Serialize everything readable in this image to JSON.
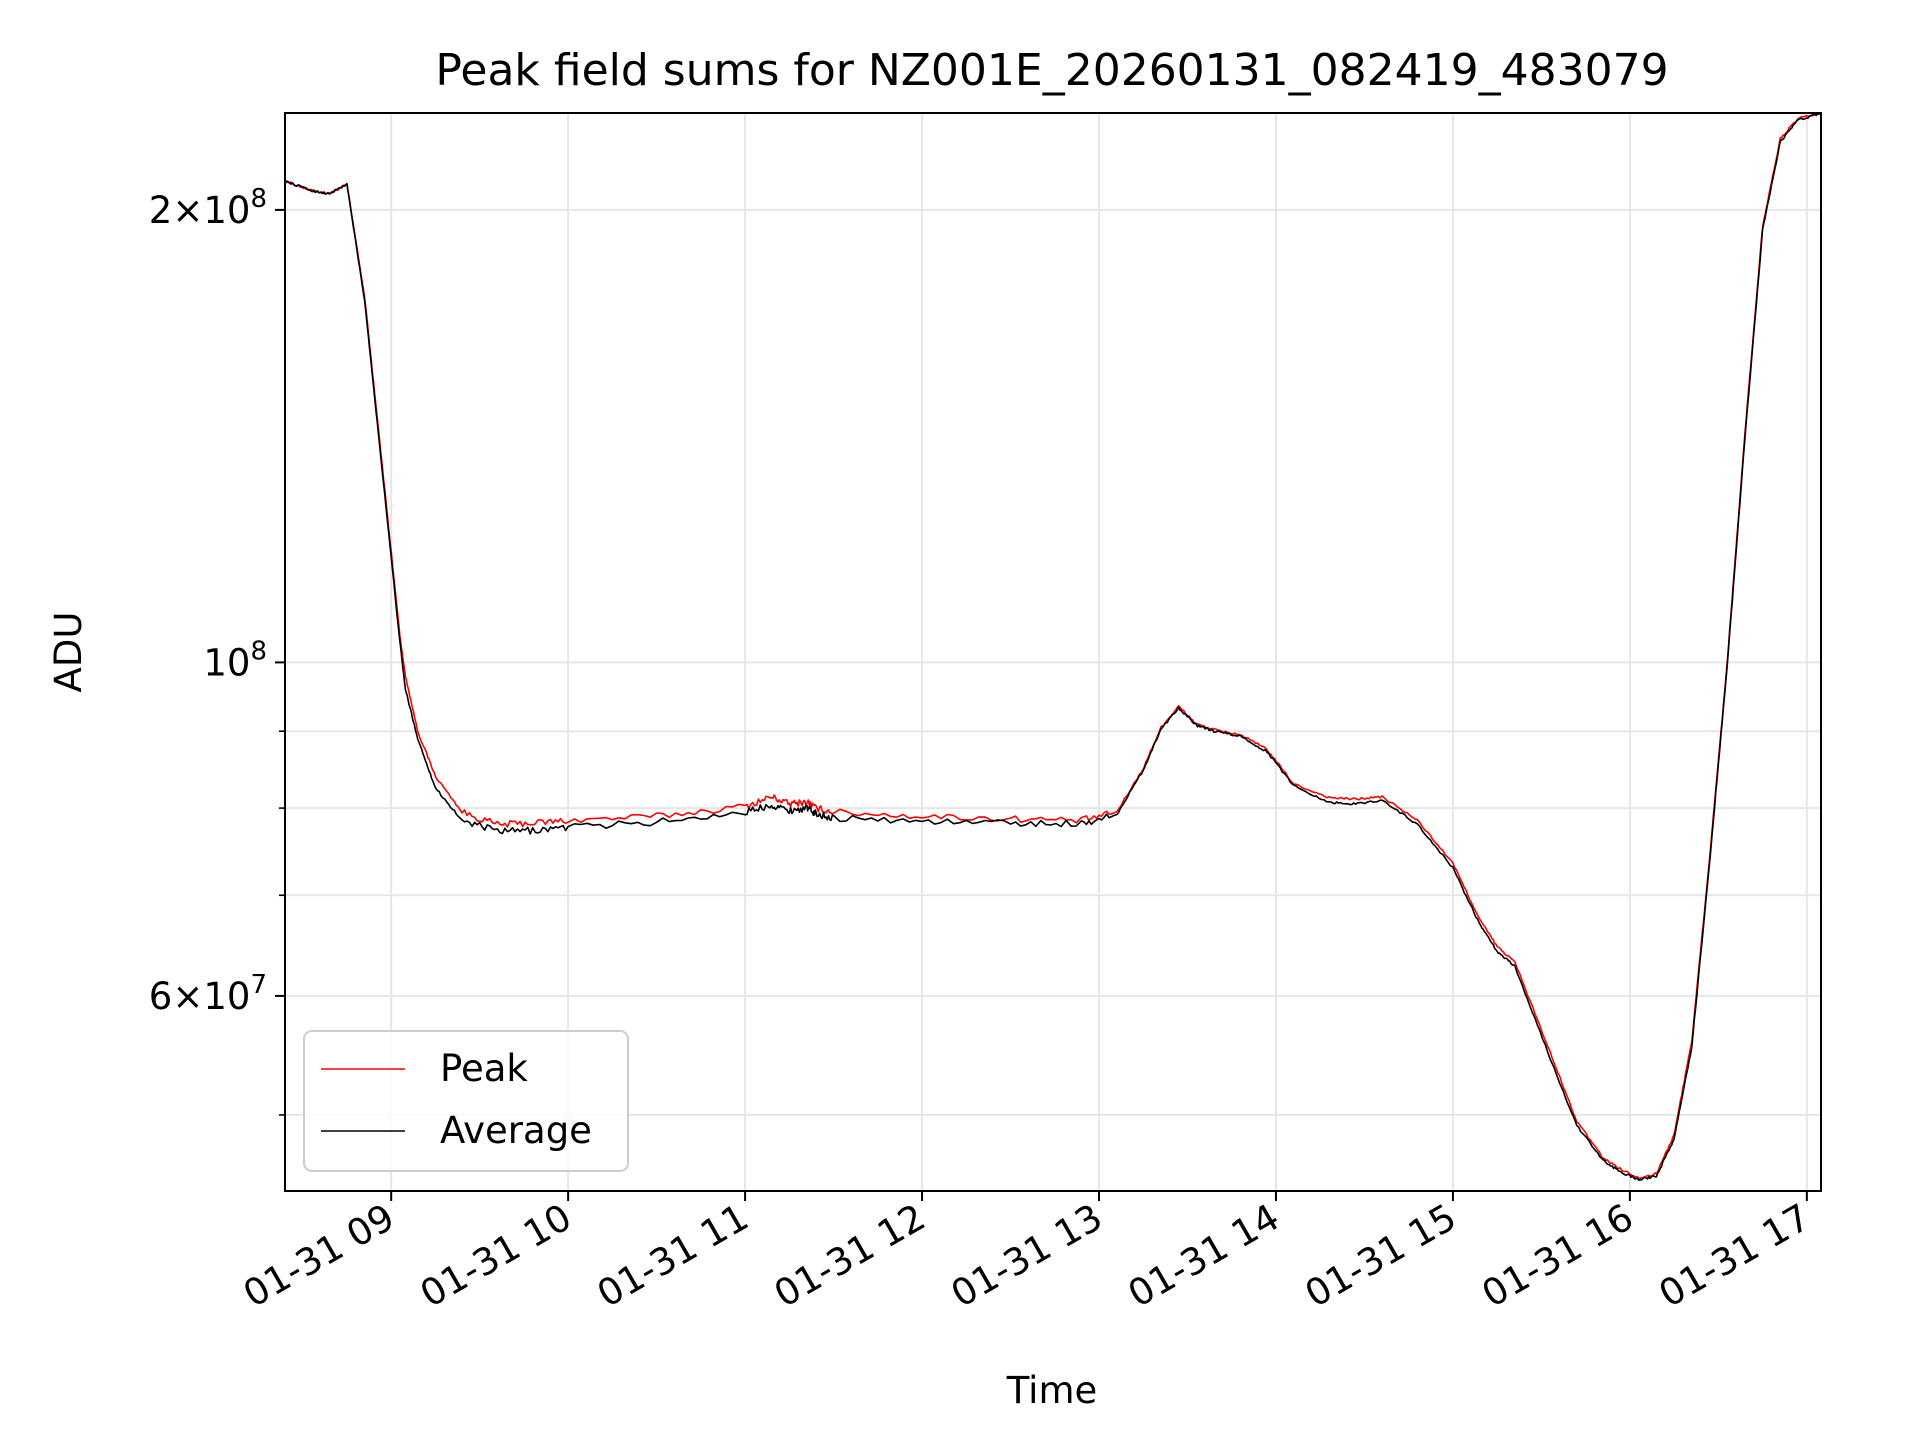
{
  "chart_data": {
    "type": "line",
    "title": "Peak field sums for NZ001E_20260131_082419_483079",
    "xlabel": "Time",
    "ylabel": "ADU",
    "yscale": "log",
    "grid": true,
    "legend_position": "lower-left",
    "x_unit": "hours since 2026-01-31 00:00",
    "xlim": [
      8.4,
      17.08
    ],
    "ylim": [
      44500000,
      232000000
    ],
    "x_ticks": [
      {
        "value": 9,
        "label": "01-31 09"
      },
      {
        "value": 10,
        "label": "01-31 10"
      },
      {
        "value": 11,
        "label": "01-31 11"
      },
      {
        "value": 12,
        "label": "01-31 12"
      },
      {
        "value": 13,
        "label": "01-31 13"
      },
      {
        "value": 14,
        "label": "01-31 14"
      },
      {
        "value": 15,
        "label": "01-31 15"
      },
      {
        "value": 16,
        "label": "01-31 16"
      },
      {
        "value": 17,
        "label": "01-31 17"
      }
    ],
    "y_major_ticks": [
      {
        "value": 60000000,
        "mantissa": "6",
        "times": "×",
        "base": "10",
        "exponent": "7"
      },
      {
        "value": 100000000,
        "mantissa": "",
        "times": "",
        "base": "10",
        "exponent": "8"
      },
      {
        "value": 200000000,
        "mantissa": "2",
        "times": "×",
        "base": "10",
        "exponent": "8"
      }
    ],
    "y_minor_ticks": [
      50000000,
      70000000,
      80000000,
      90000000
    ],
    "series": [
      {
        "name": "Peak",
        "color": "#ff0000",
        "x": [
          8.4,
          8.55,
          8.65,
          8.75,
          8.85,
          8.95,
          9.05,
          9.08,
          9.15,
          9.25,
          9.4,
          9.6,
          9.8,
          10.0,
          10.5,
          11.0,
          11.15,
          11.25,
          11.35,
          11.4,
          11.5,
          12.0,
          12.5,
          12.9,
          13.1,
          13.25,
          13.35,
          13.45,
          13.55,
          13.65,
          13.8,
          13.95,
          14.1,
          14.3,
          14.45,
          14.6,
          14.8,
          15.0,
          15.15,
          15.25,
          15.35,
          15.55,
          15.7,
          15.85,
          15.95,
          16.05,
          16.15,
          16.25,
          16.35,
          16.45,
          16.55,
          16.65,
          16.75,
          16.85,
          16.95,
          17.08
        ],
        "y": [
          209000000,
          206000000,
          205000000,
          208000000,
          175000000,
          135000000,
          104000000,
          98000000,
          90000000,
          84000000,
          79500000,
          78000000,
          78200000,
          78500000,
          79000000,
          80200000,
          81400000,
          80500000,
          80800000,
          80000000,
          79500000,
          79000000,
          78700000,
          78500000,
          79500000,
          85000000,
          90500000,
          93500000,
          91000000,
          90200000,
          89500000,
          87500000,
          83000000,
          81300000,
          81100000,
          81400000,
          78500000,
          73500000,
          67500000,
          64700000,
          63200000,
          55000000,
          49500000,
          46800000,
          46000000,
          45400000,
          45700000,
          48500000,
          56000000,
          74000000,
          100000000,
          142000000,
          195000000,
          223000000,
          230000000,
          232000000
        ]
      },
      {
        "name": "Average",
        "color": "#000000",
        "x": [
          8.4,
          8.55,
          8.65,
          8.75,
          8.85,
          8.95,
          9.05,
          9.08,
          9.15,
          9.25,
          9.4,
          9.6,
          9.8,
          10.0,
          10.5,
          11.0,
          11.15,
          11.25,
          11.35,
          11.4,
          11.5,
          12.0,
          12.5,
          12.9,
          13.1,
          13.25,
          13.35,
          13.45,
          13.55,
          13.65,
          13.8,
          13.95,
          14.1,
          14.3,
          14.45,
          14.6,
          14.8,
          15.0,
          15.15,
          15.25,
          15.35,
          15.55,
          15.7,
          15.85,
          15.95,
          16.05,
          16.15,
          16.25,
          16.35,
          16.45,
          16.55,
          16.65,
          16.75,
          16.85,
          16.95,
          17.08
        ],
        "y": [
          209000000,
          206000000,
          205000000,
          208000000,
          174000000,
          134000000,
          103000000,
          96000000,
          89000000,
          82500000,
          78500000,
          77200000,
          77300000,
          77700000,
          78300000,
          79500000,
          80400000,
          79700000,
          80000000,
          79300000,
          78800000,
          78400000,
          78200000,
          78100000,
          79200000,
          84800000,
          90300000,
          93300000,
          90800000,
          90000000,
          89300000,
          87200000,
          82800000,
          80700000,
          80500000,
          81000000,
          78000000,
          73000000,
          67000000,
          64200000,
          62800000,
          54500000,
          49200000,
          46600000,
          45800000,
          45300000,
          45500000,
          48200000,
          55500000,
          73500000,
          99500000,
          141000000,
          194000000,
          222000000,
          229500000,
          232000000
        ]
      }
    ]
  }
}
